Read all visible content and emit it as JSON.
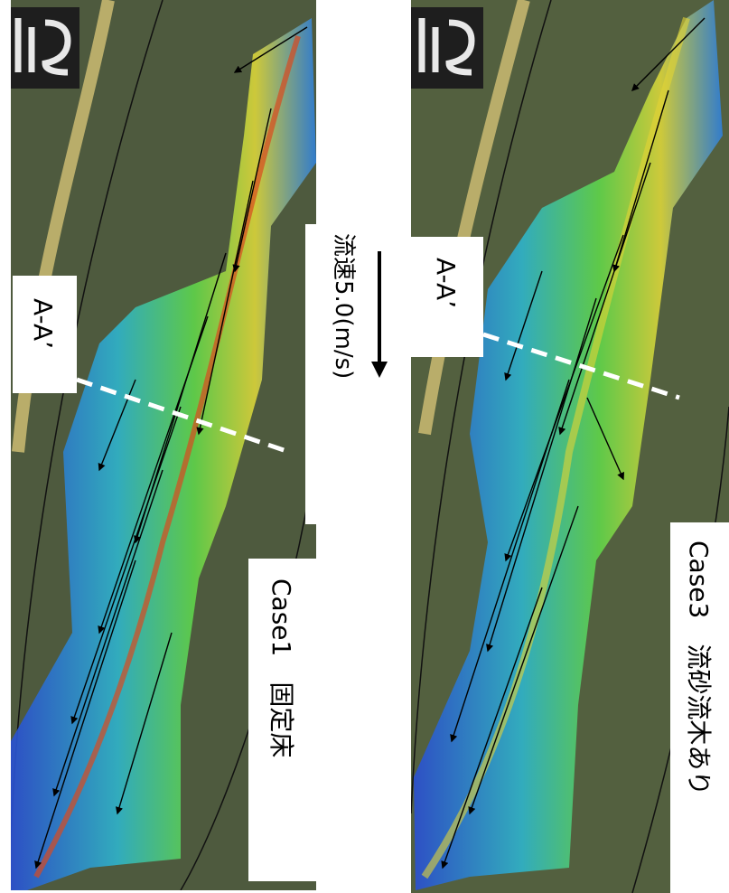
{
  "panels": [
    {
      "section_label": "A-A’",
      "case_label": "Case1　固定床"
    },
    {
      "section_label": "A-A’",
      "case_label": "Case3　流砂流木あり"
    }
  ],
  "scale_label": "流速5.0(m/s)"
}
